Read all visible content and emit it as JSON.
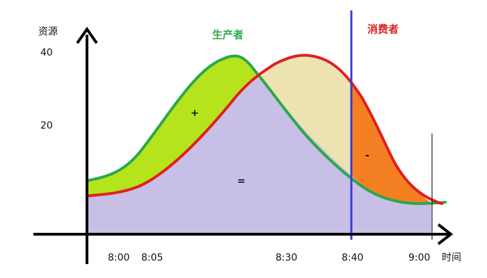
{
  "labels": {
    "y_axis": "资源",
    "x_axis": "时间",
    "producer": "生产者",
    "consumer": "消费者",
    "plus": "+",
    "equals": "=",
    "minus": "-"
  },
  "y_ticks": [
    "40",
    "20"
  ],
  "x_ticks": [
    "8:00",
    "8:05",
    "8:30",
    "8:40",
    "9:00"
  ],
  "colors": {
    "producer_line": "#2aa84a",
    "consumer_line": "#e02020",
    "shared_area": "#c7bfe6",
    "surplus_area": "#b5e41c",
    "consumer_peak_area": "#ede2b1",
    "deficit_area": "#f57f23",
    "marker_line": "#3b3bd6"
  }
}
